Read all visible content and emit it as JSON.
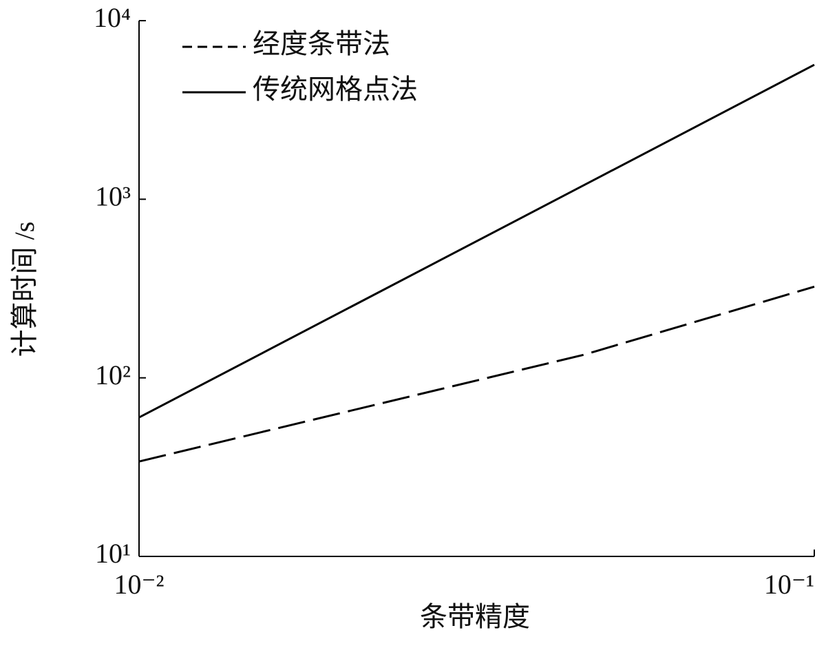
{
  "chart_data": {
    "type": "line",
    "x_label": "条带精度",
    "y_label": "计算时间 /s",
    "x": [
      0.01,
      0.0457,
      0.1
    ],
    "series": [
      {
        "name": "经度条带法",
        "color": "#000000",
        "dash": "dashed",
        "values": [
          34,
          135,
          324
        ]
      },
      {
        "name": "传统网格点法",
        "color": "#000000",
        "dash": "solid",
        "values": [
          60,
          1205,
          5660
        ]
      }
    ],
    "xlim": [
      0.01,
      0.1
    ],
    "ylim": [
      10,
      10000
    ],
    "xticks": [
      {
        "value": 0.01,
        "label": "10⁻²"
      },
      {
        "value": 0.1,
        "label": "10⁻¹"
      }
    ],
    "yticks": [
      {
        "value": 10,
        "label": "10¹"
      },
      {
        "value": 100,
        "label": "10²"
      },
      {
        "value": 1000,
        "label": "10³"
      },
      {
        "value": 10000,
        "label": "10⁴"
      }
    ],
    "x_log": true,
    "y_log": true,
    "legend": "top-left"
  }
}
